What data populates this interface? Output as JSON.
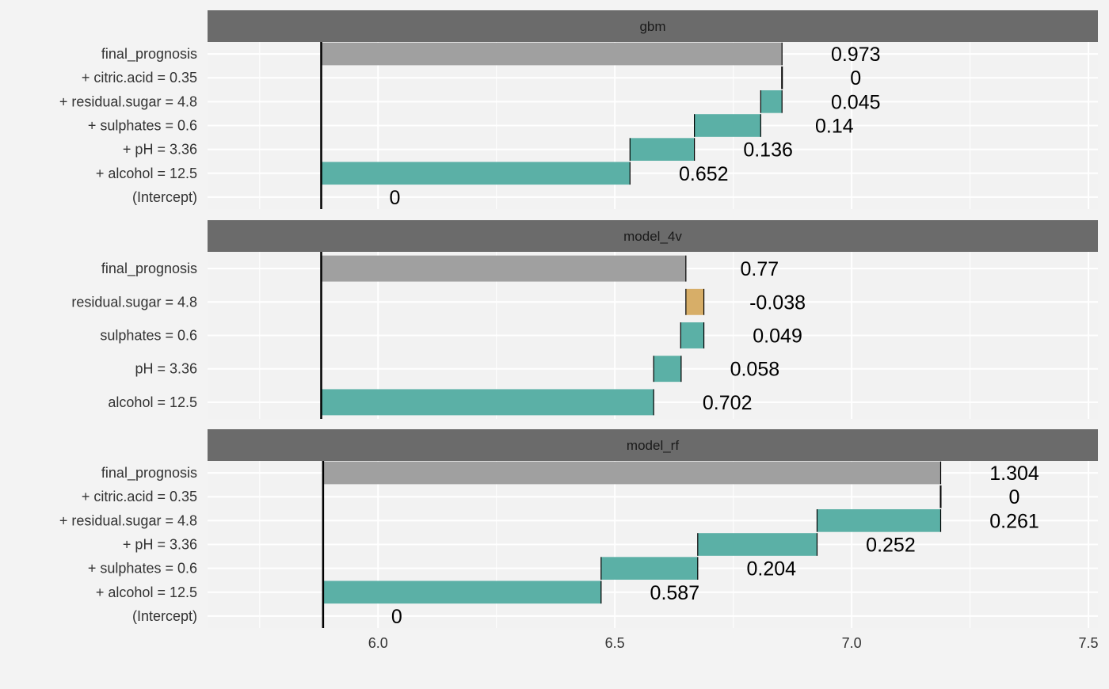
{
  "colors": {
    "background": "#f3f3f3",
    "panel_background": "#f2f2f2",
    "strip": "#6b6b6b",
    "strip_text": "#1a1a1a",
    "grid": "#ffffff",
    "positive": "#5bb0a6",
    "negative": "#d7ae68",
    "prediction": "#a0a0a0",
    "axis_text": "#333333",
    "value_text": "#000000"
  },
  "chart_data": {
    "type": "bar",
    "subtype": "waterfall / break-down",
    "x_axis": {
      "ticks": [
        6.0,
        6.5,
        7.0,
        7.5
      ],
      "tick_labels": [
        "6.0",
        "6.5",
        "7.0",
        "7.5"
      ],
      "range": [
        5.64,
        7.52
      ]
    },
    "grid": true,
    "panels": [
      {
        "name": "gbm",
        "intercept": 5.88,
        "rows": [
          {
            "label": "final_prognosis",
            "kind": "prediction",
            "start": 5.88,
            "end": 6.853,
            "value_label": "0.973"
          },
          {
            "label": "+ citric.acid = 0.35",
            "kind": "zero",
            "start": 6.853,
            "end": 6.853,
            "value_label": "0"
          },
          {
            "label": "+ residual.sugar = 4.8",
            "kind": "positive",
            "start": 6.808,
            "end": 6.853,
            "value_label": "0.045"
          },
          {
            "label": "+ sulphates = 0.6",
            "kind": "positive",
            "start": 6.668,
            "end": 6.808,
            "value_label": "0.14"
          },
          {
            "label": "+ pH = 3.36",
            "kind": "positive",
            "start": 6.532,
            "end": 6.668,
            "value_label": "0.136"
          },
          {
            "label": "+ alcohol = 12.5",
            "kind": "positive",
            "start": 5.88,
            "end": 6.532,
            "value_label": "0.652"
          },
          {
            "label": "(Intercept)",
            "kind": "zero",
            "start": 5.88,
            "end": 5.88,
            "value_label": "0"
          }
        ]
      },
      {
        "name": "model_4v",
        "intercept": 5.88,
        "rows": [
          {
            "label": "final_prognosis",
            "kind": "prediction",
            "start": 5.88,
            "end": 6.65,
            "value_label": "0.77"
          },
          {
            "label": "residual.sugar = 4.8",
            "kind": "negative",
            "start": 6.65,
            "end": 6.688,
            "value_label": "-0.038"
          },
          {
            "label": "sulphates = 0.6",
            "kind": "positive",
            "start": 6.639,
            "end": 6.688,
            "value_label": "0.049"
          },
          {
            "label": "pH = 3.36",
            "kind": "positive",
            "start": 6.582,
            "end": 6.64,
            "value_label": "0.058"
          },
          {
            "label": "alcohol = 12.5",
            "kind": "positive",
            "start": 5.88,
            "end": 6.582,
            "value_label": "0.702"
          }
        ]
      },
      {
        "name": "model_rf",
        "intercept": 5.884,
        "rows": [
          {
            "label": "final_prognosis",
            "kind": "prediction",
            "start": 5.884,
            "end": 7.188,
            "value_label": "1.304"
          },
          {
            "label": "+ citric.acid = 0.35",
            "kind": "zero",
            "start": 7.188,
            "end": 7.188,
            "value_label": "0"
          },
          {
            "label": "+ residual.sugar = 4.8",
            "kind": "positive",
            "start": 6.927,
            "end": 7.188,
            "value_label": "0.261"
          },
          {
            "label": "+ pH = 3.36",
            "kind": "positive",
            "start": 6.675,
            "end": 6.927,
            "value_label": "0.252"
          },
          {
            "label": "+ sulphates = 0.6",
            "kind": "positive",
            "start": 6.471,
            "end": 6.675,
            "value_label": "0.204"
          },
          {
            "label": "+ alcohol = 12.5",
            "kind": "positive",
            "start": 5.884,
            "end": 6.471,
            "value_label": "0.587"
          },
          {
            "label": "(Intercept)",
            "kind": "zero",
            "start": 5.884,
            "end": 5.884,
            "value_label": "0"
          }
        ]
      }
    ]
  }
}
